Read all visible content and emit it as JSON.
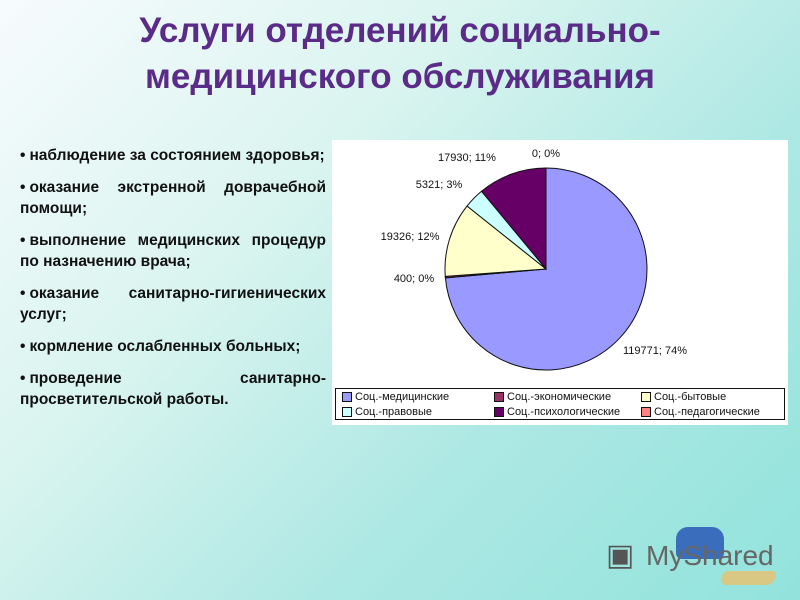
{
  "title": {
    "line1": "Услуги отделений социально-",
    "line2": "медицинского обслуживания"
  },
  "bullets": [
    "наблюдение за состоянием здоровья;",
    "оказание экстренной доврачебной помощи;",
    "выполнение медицинских процедур по назначению врача;",
    "оказание санитарно-гигиенических услуг;",
    "кормление ослабленных больных;",
    "проведение санитарно-просветительской работы."
  ],
  "chart_data": {
    "type": "pie",
    "categories": [
      "Соц.-медицинские",
      "Соц.-экономические",
      "Соц.-бытовые",
      "Соц.-правовые",
      "Соц.-психологические",
      "Соц.-педагогические"
    ],
    "values": [
      119771,
      400,
      19326,
      5321,
      17930,
      0
    ],
    "labels": [
      "119771; 74%",
      "400; 0%",
      "19326; 12%",
      "5321; 3%",
      "17930; 11%",
      "0; 0%"
    ],
    "colors": [
      "#9999ff",
      "#993366",
      "#ffffcc",
      "#ccffff",
      "#660066",
      "#ff8080"
    ],
    "legend_placement": "bottom"
  },
  "watermark": {
    "text": "MyShared"
  }
}
